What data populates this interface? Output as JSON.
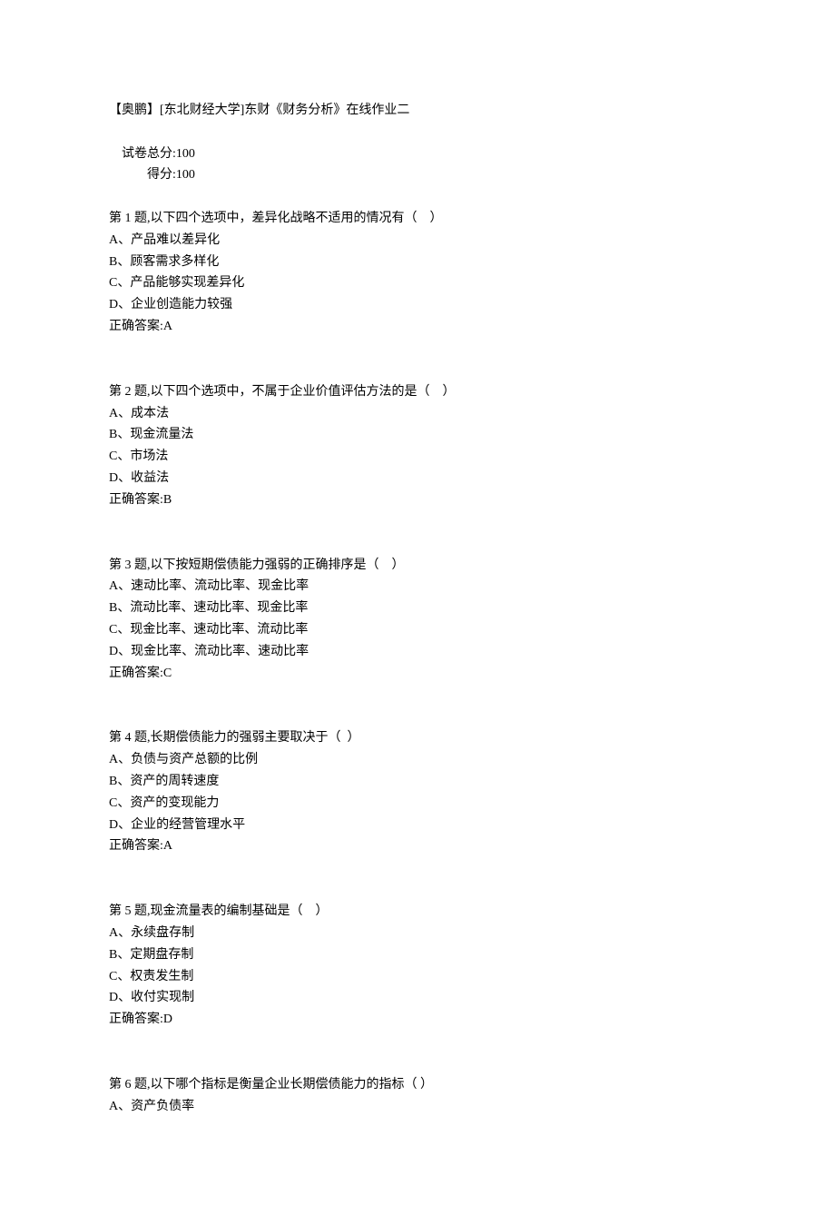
{
  "header": {
    "title": "【奥鹏】[东北财经大学]东财《财务分析》在线作业二",
    "total_score_label": "试卷总分:",
    "total_score_value": "100",
    "obtained_label": "得分:",
    "obtained_value": "100"
  },
  "questions": [
    {
      "number_label": "第 1 题,",
      "stem": "以下四个选项中，差异化战略不适用的情况有（    ）",
      "options": [
        "A、产品难以差异化",
        "B、顾客需求多样化",
        "C、产品能够实现差异化",
        "D、企业创造能力较强"
      ],
      "answer_label": "正确答案:",
      "answer_value": "A"
    },
    {
      "number_label": "第 2 题,",
      "stem": "以下四个选项中，不属于企业价值评估方法的是（    ）",
      "options": [
        "A、成本法",
        "B、现金流量法",
        "C、市场法",
        "D、收益法"
      ],
      "answer_label": "正确答案:",
      "answer_value": "B"
    },
    {
      "number_label": "第 3 题,",
      "stem": "以下按短期偿债能力强弱的正确排序是（    ）",
      "options": [
        "A、速动比率、流动比率、现金比率",
        "B、流动比率、速动比率、现金比率",
        "C、现金比率、速动比率、流动比率",
        "D、现金比率、流动比率、速动比率"
      ],
      "answer_label": "正确答案:",
      "answer_value": "C"
    },
    {
      "number_label": "第 4 题,",
      "stem": "长期偿债能力的强弱主要取决于（  ）",
      "options": [
        "A、负债与资产总额的比例",
        "B、资产的周转速度",
        "C、资产的变现能力",
        "D、企业的经营管理水平"
      ],
      "answer_label": "正确答案:",
      "answer_value": "A"
    },
    {
      "number_label": "第 5 题,",
      "stem": "现金流量表的编制基础是（    ）",
      "options": [
        "A、永续盘存制",
        "B、定期盘存制",
        "C、权责发生制",
        "D、收付实现制"
      ],
      "answer_label": "正确答案:",
      "answer_value": "D"
    },
    {
      "number_label": "第 6 题,",
      "stem": "以下哪个指标是衡量企业长期偿债能力的指标（ ）",
      "options": [
        "A、资产负债率"
      ],
      "answer_label": "",
      "answer_value": ""
    }
  ]
}
